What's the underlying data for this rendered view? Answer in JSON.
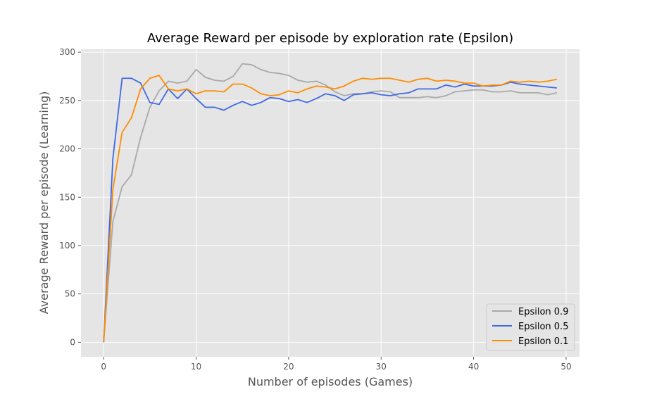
{
  "chart_data": {
    "type": "line",
    "title": "Average Reward per episode by exploration rate (Epsilon)",
    "xlabel": "Number of episodes (Games)",
    "ylabel": "Average Reward per episode (Learning)",
    "xlim": [
      -2.45,
      51.45
    ],
    "ylim": [
      -15,
      303
    ],
    "xticks": [
      0,
      10,
      20,
      30,
      40,
      50
    ],
    "yticks": [
      0,
      50,
      100,
      150,
      200,
      250,
      300
    ],
    "grid": true,
    "legend_position": "lower-right",
    "background_color": "#e5e5e5",
    "x": [
      0,
      1,
      2,
      3,
      4,
      5,
      6,
      7,
      8,
      9,
      10,
      11,
      12,
      13,
      14,
      15,
      16,
      17,
      18,
      19,
      20,
      21,
      22,
      23,
      24,
      25,
      26,
      27,
      28,
      29,
      30,
      31,
      32,
      33,
      34,
      35,
      36,
      37,
      38,
      39,
      40,
      41,
      42,
      43,
      44,
      45,
      46,
      47,
      48,
      49
    ],
    "series": [
      {
        "name": "Epsilon 0.9",
        "color": "#a9a9a9",
        "values": [
          0,
          125,
          161,
          173,
          212,
          243,
          260,
          270,
          268,
          270,
          282,
          274,
          271,
          270,
          275,
          288,
          287,
          282,
          279,
          278,
          276,
          271,
          269,
          270,
          266,
          259,
          255,
          257,
          257,
          259,
          260,
          259,
          253,
          253,
          253,
          254,
          253,
          255,
          259,
          260,
          261,
          261,
          259,
          259,
          260,
          258,
          258,
          258,
          256,
          258
        ]
      },
      {
        "name": "Epsilon 0.5",
        "color": "#4169e1",
        "values": [
          0,
          190,
          273,
          273,
          268,
          248,
          246,
          262,
          252,
          262,
          252,
          243,
          243,
          240,
          245,
          249,
          245,
          248,
          253,
          252,
          249,
          251,
          248,
          252,
          257,
          255,
          250,
          256,
          257,
          258,
          256,
          255,
          257,
          258,
          262,
          262,
          262,
          266,
          264,
          267,
          265,
          265,
          265,
          266,
          269,
          267,
          266,
          265,
          264,
          263
        ]
      },
      {
        "name": "Epsilon 0.1",
        "color": "#ff8c00",
        "values": [
          0,
          158,
          217,
          232,
          262,
          273,
          276,
          262,
          260,
          262,
          257,
          260,
          260,
          259,
          267,
          267,
          263,
          257,
          255,
          256,
          260,
          258,
          262,
          265,
          264,
          262,
          265,
          270,
          273,
          272,
          273,
          273,
          271,
          269,
          272,
          273,
          270,
          271,
          270,
          268,
          268,
          265,
          266,
          266,
          270,
          269,
          270,
          269,
          270,
          272
        ]
      }
    ]
  }
}
